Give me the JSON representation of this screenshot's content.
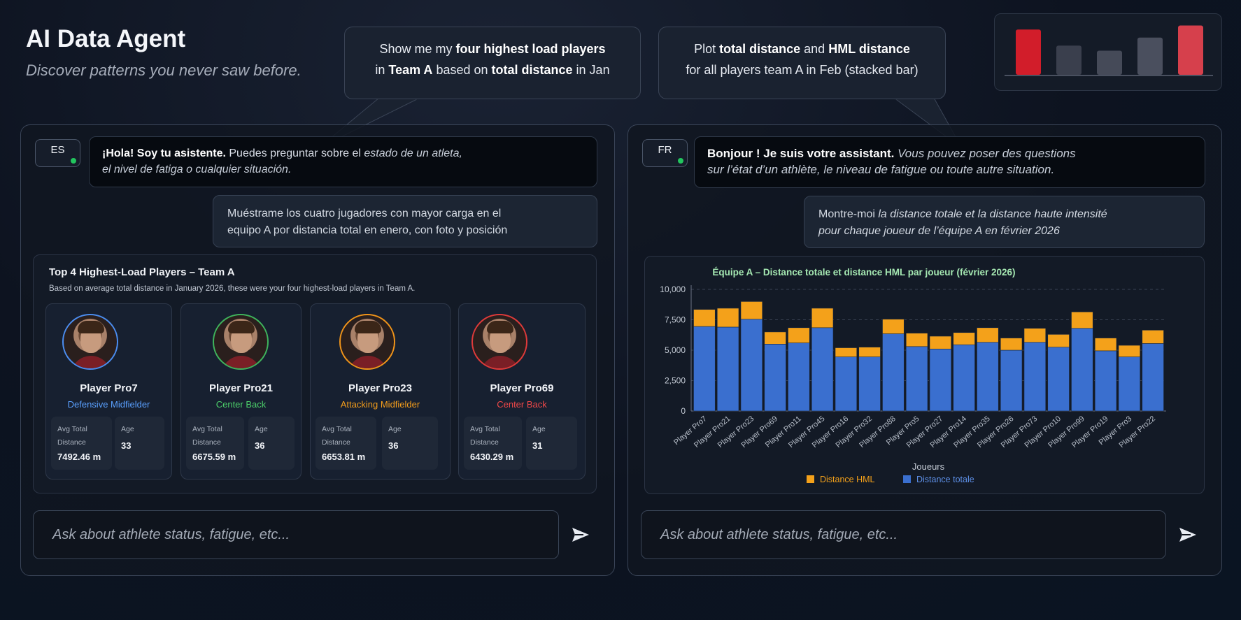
{
  "header": {
    "title": "AI Data Agent",
    "subtitle": "Discover patterns you never saw before."
  },
  "bubbles": [
    {
      "line1_a": "Show me my ",
      "line1_b": "four highest load players",
      "line2_a": "in ",
      "line2_b": "Team A",
      "line2_c": " based on ",
      "line2_d": "total distance",
      "line2_e": " in Jan"
    },
    {
      "line1_a": "Plot ",
      "line1_b": "total distance",
      "line1_c": " and ",
      "line1_d": "HML distance",
      "line2": "for all players team A in Feb (stacked bar)"
    }
  ],
  "logo": {
    "bars": [
      0.9,
      0.58,
      0.48,
      0.74,
      0.98
    ],
    "colors": [
      "#d21d2a",
      "#3a3f4d",
      "#454a58",
      "#4a4f5e",
      "#d6404c"
    ]
  },
  "left_panel": {
    "lang": "ES",
    "assistant_msg": {
      "greet": "¡Hola! Soy tu asistente.",
      "l1": " Puedes preguntar sobre el ",
      "l1_i": "estado de un atleta,",
      "l2_i": "el nivel de fatiga o cualquier situación."
    },
    "user_msg": {
      "l1": "Muéstrame los cuatro jugadores con mayor carga en el",
      "l2": "equipo A por distancia total en enero, con foto y posición"
    },
    "result": {
      "title": "Top 4 Highest-Load Players – Team A",
      "description": "Based on average total distance in January 2026, these were your four highest-load players in Team A.",
      "stat_label_1a": "Avg Total",
      "stat_label_1b": "Distance",
      "stat_label_2": "Age",
      "players": [
        {
          "name": "Player Pro7",
          "position": "Defensive Midfielder",
          "pos_color": "#5aa0ff",
          "ring": "#4b8df0",
          "distance": "7492.46 m",
          "age": "33"
        },
        {
          "name": "Player Pro21",
          "position": "Center Back",
          "pos_color": "#4ccf6a",
          "ring": "#3fb45c",
          "distance": "6675.59 m",
          "age": "36"
        },
        {
          "name": "Player Pro23",
          "position": "Attacking Midfielder",
          "pos_color": "#f59e1b",
          "ring": "#f0941a",
          "distance": "6653.81 m",
          "age": "36"
        },
        {
          "name": "Player Pro69",
          "position": "Center Back",
          "pos_color": "#f04848",
          "ring": "#e03a3a",
          "distance": "6430.29 m",
          "age": "31"
        }
      ]
    },
    "input_placeholder": "Ask about athlete status, fatigue, etc..."
  },
  "right_panel": {
    "lang": "FR",
    "assistant_msg": {
      "greet": "Bonjour ! Je suis votre assistant.",
      "l1_i": " Vous pouvez poser des questions",
      "l2_i": "sur l’état d’un athlète, le niveau de fatigue ou toute autre situation."
    },
    "user_msg": {
      "l1": "Montre-moi ",
      "l1_i": "la distance totale et la distance haute intensité",
      "l2_i": "pour chaque joueur de l’équipe A en février 2026"
    },
    "input_placeholder": "Ask about athlete status, fatigue, etc..."
  },
  "chart_data": {
    "type": "bar",
    "stacked": true,
    "title": "Équipe A – Distance totale et distance HML par joueur (février 2026)",
    "xlabel": "Joueurs",
    "ylabel": "",
    "ylim": [
      0,
      10000
    ],
    "yticks": [
      "0",
      "2,500",
      "5,000",
      "7,500",
      "10,000"
    ],
    "ytick_values": [
      0,
      2500,
      5000,
      7500,
      10000
    ],
    "grid": true,
    "legend": "bottom",
    "categories": [
      "Player Pro7",
      "Player Pro21",
      "Player Pro23",
      "Player Pro69",
      "Player Pro11",
      "Player Pro45",
      "Player Pro16",
      "Player Pro32",
      "Player Pro88",
      "Player Pro5",
      "Player Pro27",
      "Player Pro14",
      "Player Pro35",
      "Player Pro26",
      "Player Pro73",
      "Player Pro10",
      "Player Pro99",
      "Player Pro19",
      "Player Pro3",
      "Player Pro22"
    ],
    "series": [
      {
        "name": "Distance totale",
        "color": "#3a6fcf",
        "values": [
          6950,
          6900,
          7550,
          5500,
          5600,
          6850,
          4450,
          4450,
          6350,
          5300,
          5100,
          5450,
          5650,
          5000,
          5650,
          5250,
          6800,
          4950,
          4450,
          5550
        ]
      },
      {
        "name": "Distance HML",
        "color": "#f4a11a",
        "values": [
          1400,
          1550,
          1450,
          1000,
          1250,
          1600,
          750,
          800,
          1200,
          1100,
          1050,
          1000,
          1200,
          1000,
          1150,
          1050,
          1350,
          1050,
          950,
          1100
        ]
      }
    ],
    "legend_order": [
      "Distance HML",
      "Distance totale"
    ]
  }
}
